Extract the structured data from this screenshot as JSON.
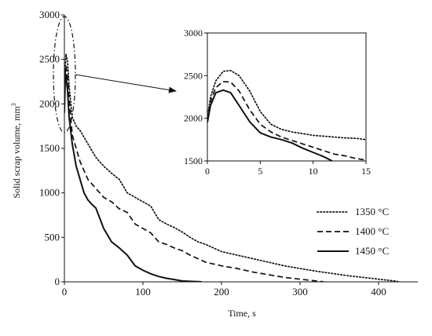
{
  "chart_data": [
    {
      "type": "line",
      "xlabel": "Time, s",
      "ylabel": "Solid scrap volume, mm",
      "ylabel_superscript": "3",
      "xlim": [
        0,
        450
      ],
      "ylim": [
        0,
        3000
      ],
      "xticks": [
        0,
        100,
        200,
        300,
        400
      ],
      "yticks": [
        0,
        500,
        1000,
        1500,
        2000,
        2500,
        3000
      ],
      "grid": false,
      "legend_position": "right",
      "series": [
        {
          "name": "1350 °C",
          "style": "dotted",
          "color": "#111111",
          "points": [
            [
              0,
              2000
            ],
            [
              1,
              2400
            ],
            [
              2,
              2560
            ],
            [
              4,
              2470
            ],
            [
              6,
              2200
            ],
            [
              10,
              1850
            ],
            [
              15,
              1750
            ],
            [
              20,
              1700
            ],
            [
              30,
              1550
            ],
            [
              40,
              1400
            ],
            [
              50,
              1300
            ],
            [
              60,
              1220
            ],
            [
              70,
              1150
            ],
            [
              80,
              1000
            ],
            [
              90,
              950
            ],
            [
              100,
              900
            ],
            [
              110,
              850
            ],
            [
              120,
              700
            ],
            [
              130,
              650
            ],
            [
              140,
              610
            ],
            [
              150,
              560
            ],
            [
              160,
              500
            ],
            [
              170,
              450
            ],
            [
              180,
              420
            ],
            [
              190,
              380
            ],
            [
              200,
              340
            ],
            [
              220,
              300
            ],
            [
              240,
              260
            ],
            [
              260,
              220
            ],
            [
              280,
              180
            ],
            [
              300,
              150
            ],
            [
              320,
              120
            ],
            [
              340,
              95
            ],
            [
              360,
              70
            ],
            [
              380,
              50
            ],
            [
              400,
              30
            ],
            [
              420,
              10
            ],
            [
              427,
              0
            ]
          ]
        },
        {
          "name": "1400 °C",
          "style": "dashed",
          "color": "#111111",
          "points": [
            [
              0,
              1950
            ],
            [
              1,
              2350
            ],
            [
              2,
              2430
            ],
            [
              4,
              2300
            ],
            [
              6,
              2050
            ],
            [
              10,
              1650
            ],
            [
              15,
              1500
            ],
            [
              20,
              1350
            ],
            [
              30,
              1150
            ],
            [
              40,
              1050
            ],
            [
              50,
              950
            ],
            [
              60,
              900
            ],
            [
              70,
              820
            ],
            [
              80,
              780
            ],
            [
              90,
              650
            ],
            [
              100,
              600
            ],
            [
              110,
              550
            ],
            [
              120,
              450
            ],
            [
              130,
              420
            ],
            [
              140,
              380
            ],
            [
              150,
              350
            ],
            [
              160,
              300
            ],
            [
              180,
              220
            ],
            [
              200,
              180
            ],
            [
              220,
              150
            ],
            [
              240,
              110
            ],
            [
              260,
              80
            ],
            [
              280,
              50
            ],
            [
              300,
              30
            ],
            [
              320,
              10
            ],
            [
              330,
              0
            ]
          ]
        },
        {
          "name": "1450 °C",
          "style": "solid",
          "color": "#111111",
          "points": [
            [
              0,
              1900
            ],
            [
              1,
              2250
            ],
            [
              2,
              2330
            ],
            [
              4,
              2150
            ],
            [
              6,
              1850
            ],
            [
              10,
              1550
            ],
            [
              15,
              1300
            ],
            [
              20,
              1150
            ],
            [
              25,
              1000
            ],
            [
              30,
              920
            ],
            [
              35,
              870
            ],
            [
              40,
              830
            ],
            [
              50,
              600
            ],
            [
              60,
              450
            ],
            [
              70,
              380
            ],
            [
              80,
              300
            ],
            [
              90,
              180
            ],
            [
              100,
              130
            ],
            [
              110,
              90
            ],
            [
              120,
              60
            ],
            [
              130,
              40
            ],
            [
              140,
              25
            ],
            [
              150,
              10
            ],
            [
              160,
              5
            ],
            [
              175,
              0
            ]
          ]
        }
      ]
    },
    {
      "type": "line",
      "xlim": [
        0,
        15
      ],
      "ylim": [
        1500,
        3000
      ],
      "xticks": [
        0,
        5,
        10,
        15
      ],
      "yticks": [
        1500,
        2000,
        2500,
        3000
      ],
      "grid": false,
      "series": [
        {
          "name": "1350 °C",
          "style": "dotted",
          "points": [
            [
              0,
              2010
            ],
            [
              0.3,
              2250
            ],
            [
              0.8,
              2440
            ],
            [
              1.5,
              2550
            ],
            [
              2.2,
              2560
            ],
            [
              3,
              2500
            ],
            [
              4,
              2320
            ],
            [
              5,
              2080
            ],
            [
              6,
              1930
            ],
            [
              7,
              1870
            ],
            [
              8,
              1840
            ],
            [
              9,
              1820
            ],
            [
              10,
              1800
            ],
            [
              11,
              1790
            ],
            [
              12,
              1780
            ],
            [
              13,
              1770
            ],
            [
              14,
              1765
            ],
            [
              15,
              1750
            ]
          ]
        },
        {
          "name": "1400 °C",
          "style": "dashed",
          "points": [
            [
              0,
              1980
            ],
            [
              0.3,
              2200
            ],
            [
              0.8,
              2360
            ],
            [
              1.5,
              2430
            ],
            [
              2.2,
              2425
            ],
            [
              3,
              2320
            ],
            [
              4,
              2100
            ],
            [
              5,
              1930
            ],
            [
              6,
              1840
            ],
            [
              7,
              1780
            ],
            [
              8,
              1740
            ],
            [
              9,
              1700
            ],
            [
              10,
              1660
            ],
            [
              11,
              1620
            ],
            [
              12,
              1580
            ],
            [
              13,
              1560
            ],
            [
              14,
              1530
            ],
            [
              15,
              1510
            ]
          ]
        },
        {
          "name": "1450 °C",
          "style": "solid",
          "points": [
            [
              0,
              1950
            ],
            [
              0.3,
              2150
            ],
            [
              0.8,
              2300
            ],
            [
              1.5,
              2330
            ],
            [
              2.2,
              2300
            ],
            [
              3,
              2150
            ],
            [
              4,
              1960
            ],
            [
              5,
              1830
            ],
            [
              6,
              1780
            ],
            [
              7,
              1750
            ],
            [
              8,
              1710
            ],
            [
              9,
              1650
            ],
            [
              10,
              1600
            ],
            [
              11,
              1550
            ],
            [
              11.8,
              1500
            ]
          ]
        }
      ]
    }
  ]
}
